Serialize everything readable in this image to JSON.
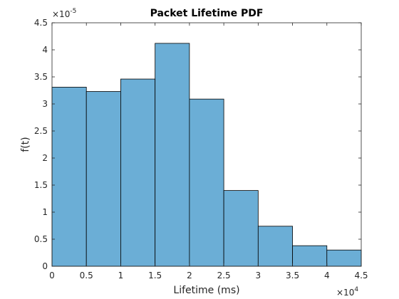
{
  "chart_data": {
    "type": "bar",
    "title": "Packet Lifetime PDF",
    "xlabel": "Lifetime (ms)",
    "ylabel": "f(t)",
    "bin_edges": [
      0,
      5000,
      10000,
      15000,
      20000,
      25000,
      30000,
      35000,
      40000,
      45000
    ],
    "values": [
      3.31e-05,
      3.23e-05,
      3.46e-05,
      4.12e-05,
      3.09e-05,
      1.4e-05,
      7.4e-06,
      3.8e-06,
      3e-06
    ],
    "xlim": [
      0,
      45000
    ],
    "ylim": [
      0,
      4.5e-05
    ],
    "x_ticks": [
      0,
      5000,
      10000,
      15000,
      20000,
      25000,
      30000,
      35000,
      40000,
      45000
    ],
    "x_tick_labels": [
      "0",
      "0.5",
      "1",
      "1.5",
      "2",
      "2.5",
      "3",
      "3.5",
      "4",
      "4.5"
    ],
    "y_ticks": [
      0,
      5e-06,
      1e-05,
      1.5e-05,
      2e-05,
      2.5e-05,
      3e-05,
      3.5e-05,
      4e-05,
      4.5e-05
    ],
    "y_tick_labels": [
      "0",
      "0.5",
      "1",
      "1.5",
      "2",
      "2.5",
      "3",
      "3.5",
      "4",
      "4.5"
    ],
    "x_exponent": {
      "base": "×10",
      "power": "4"
    },
    "y_exponent": {
      "base": "×10",
      "power": "-5"
    },
    "grid": false,
    "bar_color": "#6baed6",
    "bar_edge_color": "#000000"
  }
}
